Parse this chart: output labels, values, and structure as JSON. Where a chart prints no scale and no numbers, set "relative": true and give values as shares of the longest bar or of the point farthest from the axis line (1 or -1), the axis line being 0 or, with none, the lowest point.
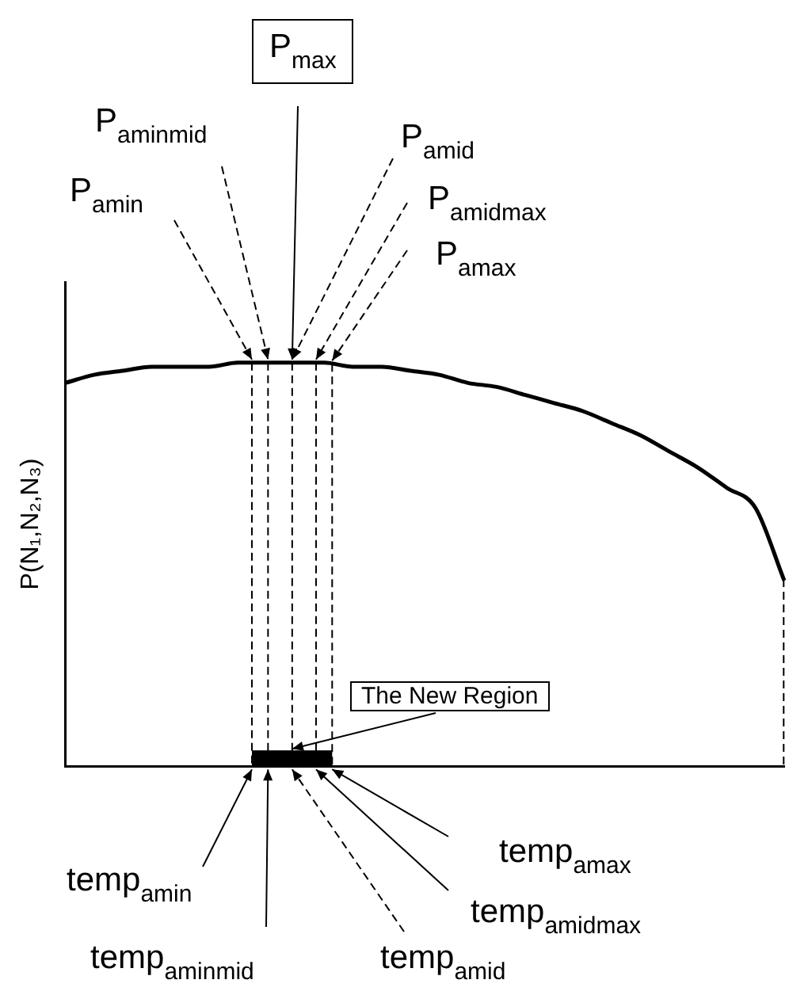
{
  "chart_data": {
    "type": "line",
    "relative": true,
    "ylabel": "P(N₁,N₂,N₃)",
    "marker": "none",
    "color": "#000000",
    "categories": [
      null,
      null,
      null,
      null,
      null,
      null,
      null,
      null,
      null,
      null,
      null,
      null,
      null,
      null,
      null,
      null,
      null,
      null,
      null,
      null,
      null,
      null,
      null,
      null,
      null,
      null
    ],
    "values": [
      0.95,
      0.97,
      0.98,
      0.99,
      0.99,
      0.99,
      1,
      1,
      1,
      1,
      0.99,
      0.99,
      0.98,
      0.97,
      0.95,
      0.94,
      0.92,
      0.9,
      0.88,
      0.85,
      0.82,
      0.78,
      0.74,
      0.69,
      0.64,
      0.46
    ],
    "annotations": [
      "P$_{max}$",
      "P$_{aminmid}$",
      "P$_{amin}$",
      "P$_{amid}$",
      "P$_{amidmax}$",
      "P$_{amax}$",
      "The New Region",
      "temp$_{amin}$",
      "temp$_{aminmid}$",
      "temp$_{amid}$",
      "temp$_{amidmax}$",
      "temp$_{amax}$"
    ]
  }
}
